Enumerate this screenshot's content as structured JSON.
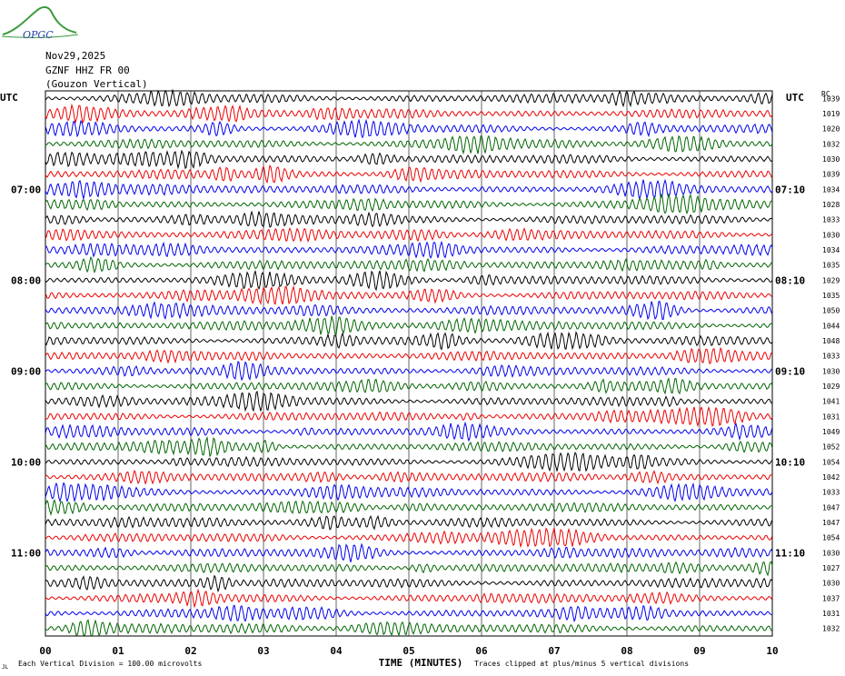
{
  "logo_text": "OPGC",
  "header": {
    "date": "Nov29,2025",
    "station": "GZNF HHZ FR 00",
    "component": "(Gouzon Vertical)"
  },
  "left_axis_label": "UTC",
  "right_axis_label": "UTC",
  "rc_label": "RC",
  "chart_data": {
    "type": "line",
    "title": "",
    "xlabel": "TIME (MINUTES)",
    "xlim": [
      0,
      10
    ],
    "x_ticks": [
      "00",
      "01",
      "02",
      "03",
      "04",
      "05",
      "06",
      "07",
      "08",
      "09",
      "10"
    ],
    "trace_colors": [
      "#000000",
      "#ee0000",
      "#0000ee",
      "#006600"
    ],
    "left_hour_labels": [
      "07:00",
      "08:00",
      "09:00",
      "10:00",
      "11:00"
    ],
    "right_hour_labels": [
      "07:10",
      "08:10",
      "09:10",
      "10:10",
      "11:10"
    ],
    "hour_label_rows": [
      6,
      12,
      18,
      24,
      30
    ],
    "rc_values": [
      "1039",
      "1019",
      "1020",
      "1032",
      "1030",
      "1039",
      "1034",
      "1028",
      "1033",
      "1030",
      "1034",
      "1035",
      "1029",
      "1035",
      "1050",
      "1044",
      "1048",
      "1033",
      "1030",
      "1029",
      "1041",
      "1031",
      "1049",
      "1052",
      "1054",
      "1042",
      "1033",
      "1047",
      "1047",
      "1054",
      "1030",
      "1027",
      "1030",
      "1037",
      "1031",
      "1032"
    ],
    "footer_left": "Each Vertical Division =  100.00 microvolts",
    "footer_right": "Traces clipped at plus/minus 5 vertical divisions",
    "footer_corner": "JL"
  }
}
